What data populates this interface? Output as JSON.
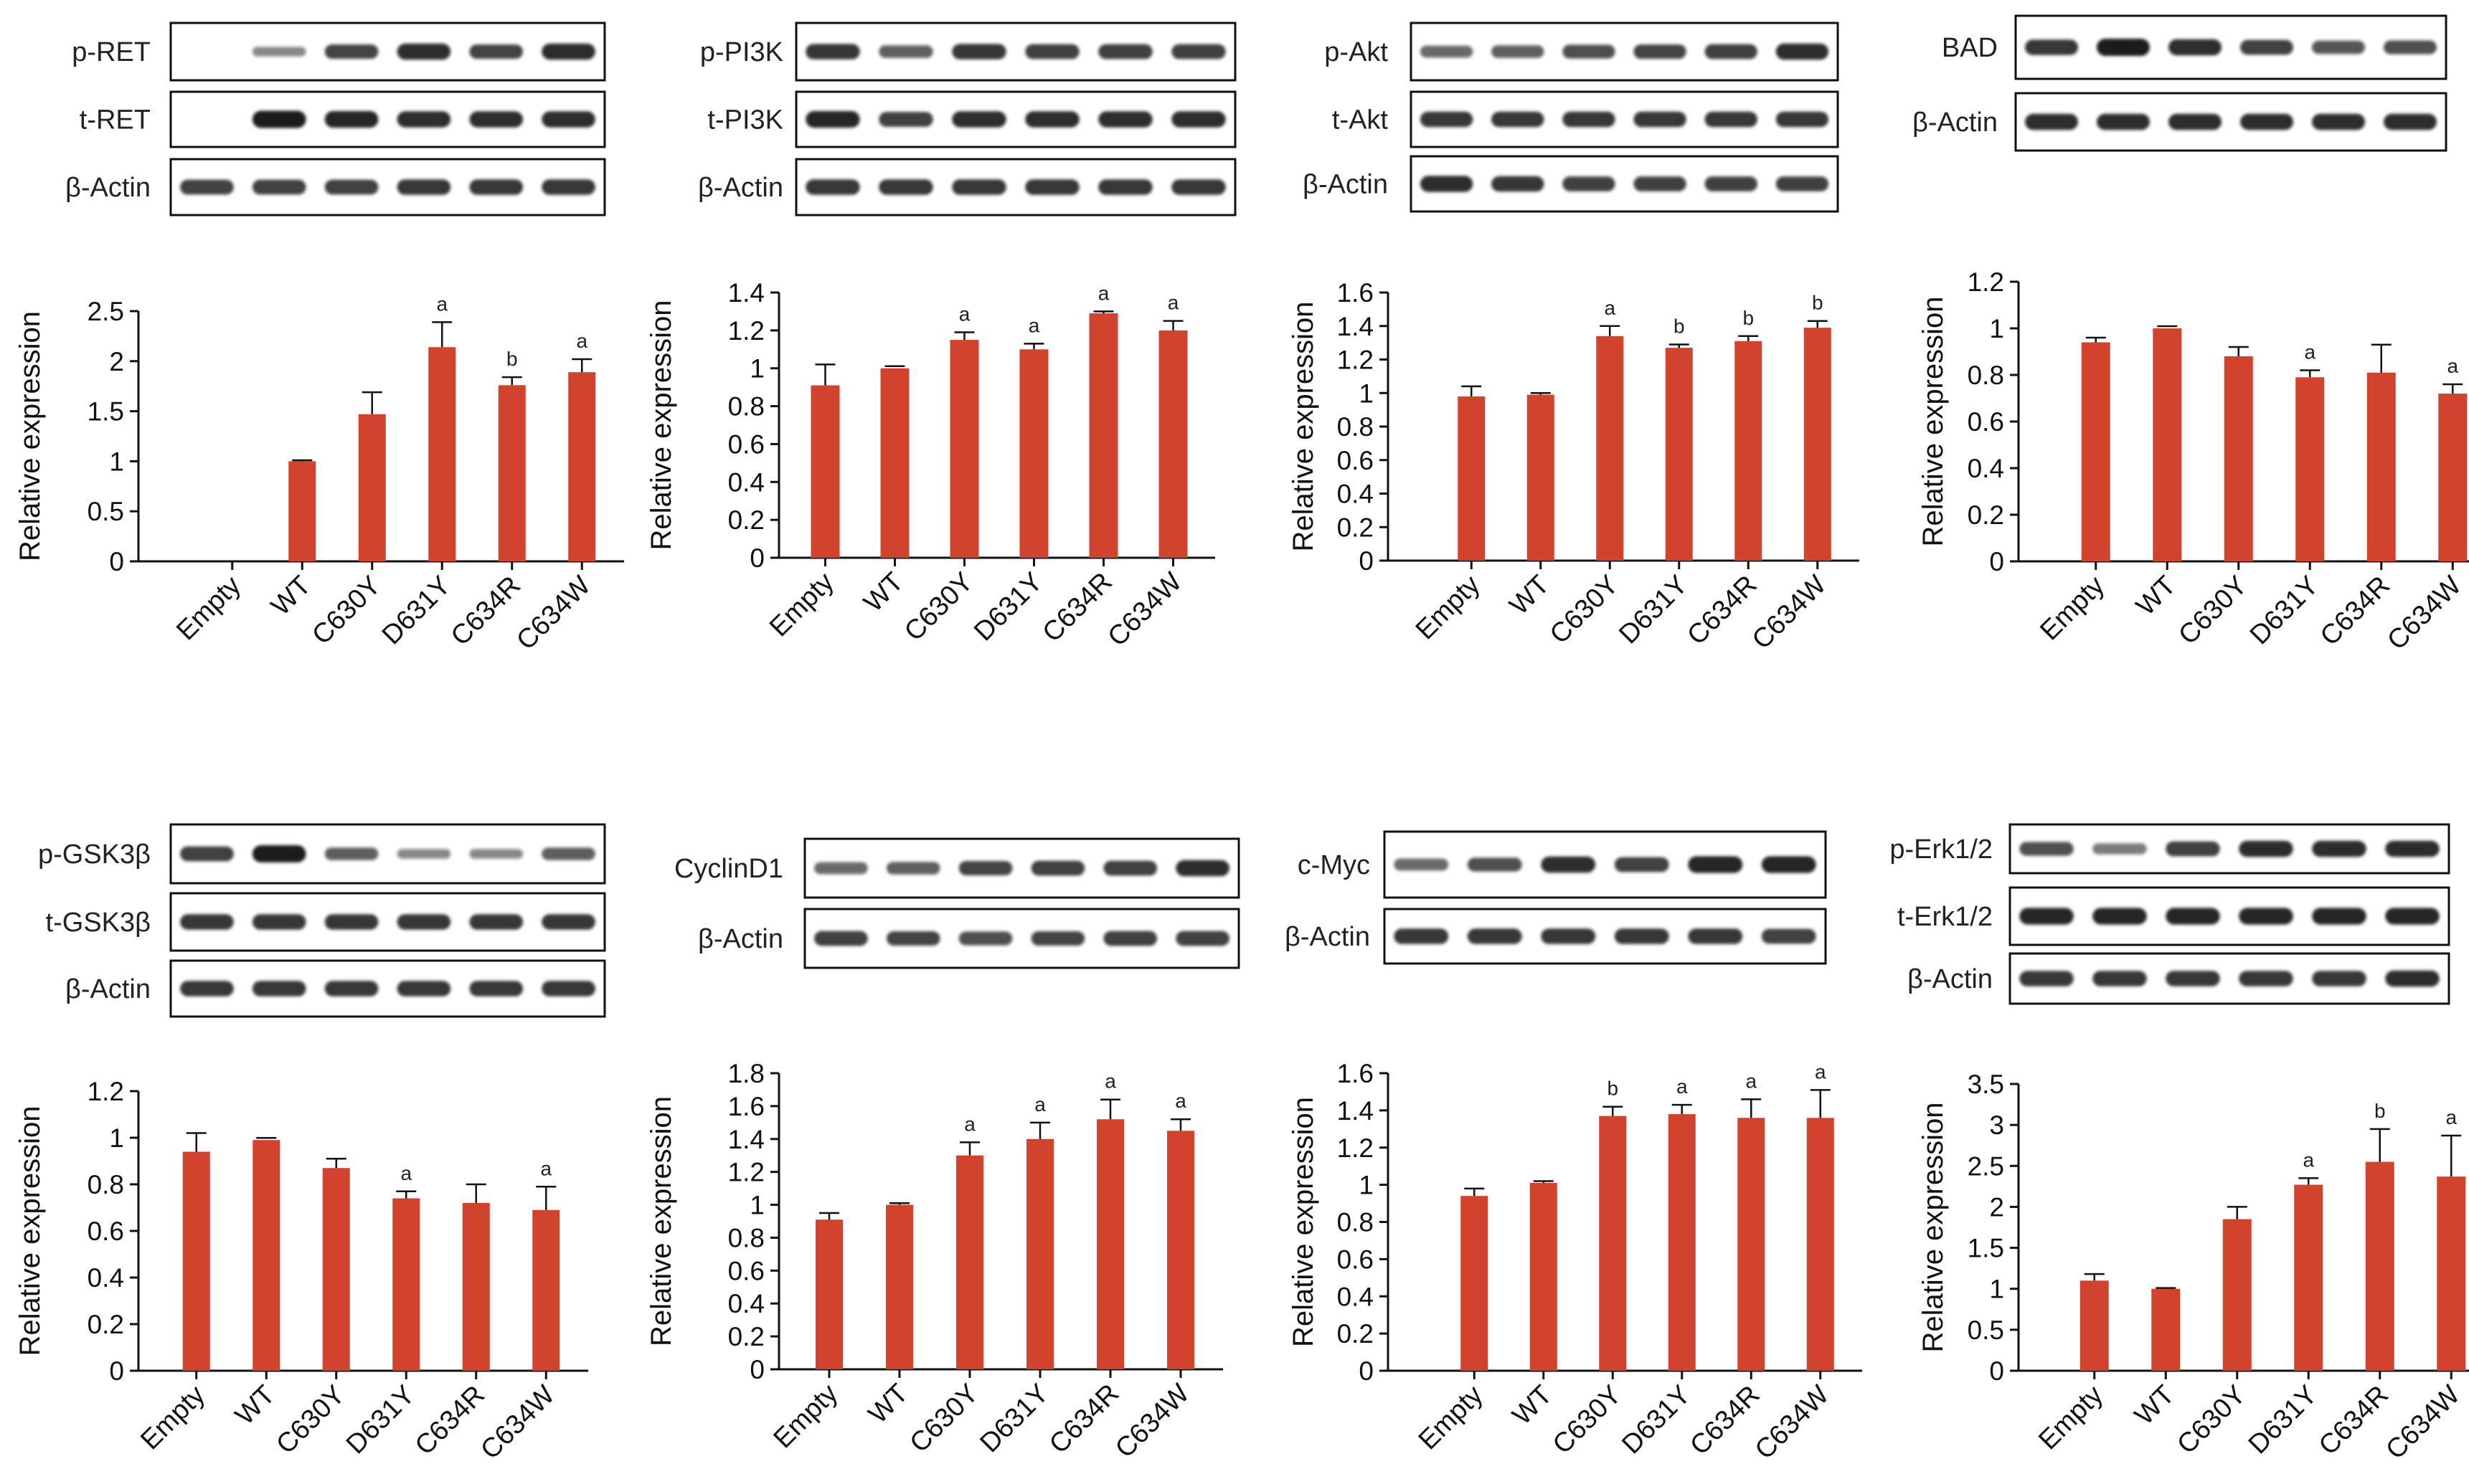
{
  "colors": {
    "bar": "#d1432c",
    "axis": "#111111",
    "band": "#1c1c1c"
  },
  "chart_data": [
    {
      "type": "bar",
      "xlabel": "",
      "ylabel": "Relative expression",
      "categories": [
        "Empty",
        "WT",
        "C630Y",
        "D631Y",
        "C634R",
        "C634W"
      ],
      "values": [
        0,
        1.0,
        1.47,
        2.14,
        1.76,
        1.89
      ],
      "errors": [
        0,
        0.01,
        0.22,
        0.25,
        0.08,
        0.13
      ],
      "sig": [
        "",
        "",
        "",
        "a",
        "b",
        "a"
      ],
      "ylim": [
        0,
        2.5
      ],
      "yticks": [
        0,
        0.5,
        1,
        1.5,
        2,
        2.5
      ],
      "ytick_labels": [
        "0",
        "0.5",
        "1",
        "1.5",
        "2",
        "2.5"
      ],
      "blots": [
        {
          "label": "p-RET",
          "bands": [
            0,
            0.35,
            0.75,
            0.9,
            0.75,
            0.9
          ]
        },
        {
          "label": "t-RET",
          "bands": [
            0,
            1,
            0.95,
            0.9,
            0.9,
            0.9
          ]
        },
        {
          "label": "β-Actin",
          "bands": [
            0.8,
            0.8,
            0.8,
            0.85,
            0.85,
            0.85
          ]
        }
      ]
    },
    {
      "type": "bar",
      "xlabel": "",
      "ylabel": "Relative expression",
      "categories": [
        "Empty",
        "WT",
        "C630Y",
        "D631Y",
        "C634R",
        "C634W"
      ],
      "values": [
        0.91,
        1.0,
        1.15,
        1.1,
        1.29,
        1.2
      ],
      "errors": [
        0.11,
        0.0,
        0.04,
        0.03,
        0.01,
        0.05
      ],
      "sig": [
        "",
        "",
        "a",
        "a",
        "a",
        "a"
      ],
      "ylim": [
        0,
        1.4
      ],
      "yticks": [
        0,
        0.2,
        0.4,
        0.6,
        0.8,
        1,
        1.2,
        1.4
      ],
      "ytick_labels": [
        "0",
        "0.2",
        "0.4",
        "0.6",
        "0.8",
        "1",
        "1.2",
        "1.4"
      ],
      "blots": [
        {
          "label": "p-PI3K",
          "bands": [
            0.85,
            0.6,
            0.85,
            0.8,
            0.8,
            0.8
          ]
        },
        {
          "label": "t-PI3K",
          "bands": [
            0.95,
            0.8,
            0.9,
            0.9,
            0.9,
            0.9
          ]
        },
        {
          "label": "β-Actin",
          "bands": [
            0.85,
            0.85,
            0.85,
            0.85,
            0.85,
            0.85
          ]
        }
      ]
    },
    {
      "type": "bar",
      "xlabel": "",
      "ylabel": "Relative expression",
      "categories": [
        "Empty",
        "WT",
        "C630Y",
        "D631Y",
        "C634R",
        "C634W"
      ],
      "values": [
        0.98,
        0.99,
        1.34,
        1.27,
        1.31,
        1.39
      ],
      "errors": [
        0.06,
        0.01,
        0.06,
        0.02,
        0.03,
        0.04
      ],
      "sig": [
        "",
        "",
        "a",
        "b",
        "b",
        "b"
      ],
      "ylim": [
        0,
        1.6
      ],
      "yticks": [
        0,
        0.2,
        0.4,
        0.6,
        0.8,
        1,
        1.2,
        1.4,
        1.6
      ],
      "ytick_labels": [
        "0",
        "0.2",
        "0.4",
        "0.6",
        "0.8",
        "1",
        "1.2",
        "1.4",
        "1.6"
      ],
      "blots": [
        {
          "label": "p-Akt",
          "bands": [
            0.55,
            0.6,
            0.7,
            0.75,
            0.8,
            0.9
          ]
        },
        {
          "label": "t-Akt",
          "bands": [
            0.85,
            0.85,
            0.85,
            0.85,
            0.85,
            0.85
          ]
        },
        {
          "label": "β-Actin",
          "bands": [
            0.9,
            0.85,
            0.8,
            0.8,
            0.8,
            0.8
          ]
        }
      ]
    },
    {
      "type": "bar",
      "xlabel": "",
      "ylabel": "Relative expression",
      "categories": [
        "Empty",
        "WT",
        "C630Y",
        "D631Y",
        "C634R",
        "C634W"
      ],
      "values": [
        0.94,
        1.0,
        0.88,
        0.79,
        0.81,
        0.72
      ],
      "errors": [
        0.02,
        0.0,
        0.04,
        0.03,
        0.12,
        0.04
      ],
      "sig": [
        "",
        "",
        "",
        "a",
        "",
        "a"
      ],
      "ylim": [
        0,
        1.2
      ],
      "yticks": [
        0,
        0.2,
        0.4,
        0.6,
        0.8,
        1,
        1.2
      ],
      "ytick_labels": [
        "0",
        "0.2",
        "0.4",
        "0.6",
        "0.8",
        "1",
        "1.2"
      ],
      "blots": [
        {
          "label": "BAD",
          "bands": [
            0.85,
            1,
            0.9,
            0.8,
            0.65,
            0.7
          ]
        },
        {
          "label": "β-Actin",
          "bands": [
            0.9,
            0.9,
            0.9,
            0.9,
            0.9,
            0.9
          ]
        }
      ]
    },
    {
      "type": "bar",
      "xlabel": "",
      "ylabel": "Relative expression",
      "categories": [
        "Empty",
        "WT",
        "C630Y",
        "D631Y",
        "C634R",
        "C634W"
      ],
      "values": [
        0.94,
        0.99,
        0.87,
        0.74,
        0.72,
        0.69
      ],
      "errors": [
        0.08,
        0.0,
        0.04,
        0.03,
        0.08,
        0.1
      ],
      "sig": [
        "",
        "",
        "",
        "a",
        "",
        "a"
      ],
      "ylim": [
        0,
        1.2
      ],
      "yticks": [
        0,
        0.2,
        0.4,
        0.6,
        0.8,
        1,
        1.2
      ],
      "ytick_labels": [
        "0",
        "0.2",
        "0.4",
        "0.6",
        "0.8",
        "1",
        "1.2"
      ],
      "blots": [
        {
          "label": "p-GSK3β",
          "bands": [
            0.8,
            1,
            0.6,
            0.35,
            0.35,
            0.6
          ]
        },
        {
          "label": "t-GSK3β",
          "bands": [
            0.85,
            0.85,
            0.85,
            0.85,
            0.85,
            0.85
          ]
        },
        {
          "label": "β-Actin",
          "bands": [
            0.85,
            0.85,
            0.85,
            0.85,
            0.85,
            0.85
          ]
        }
      ]
    },
    {
      "type": "bar",
      "xlabel": "",
      "ylabel": "Relative expression",
      "categories": [
        "Empty",
        "WT",
        "C630Y",
        "D631Y",
        "C634R",
        "C634W"
      ],
      "values": [
        0.91,
        1.0,
        1.3,
        1.4,
        1.52,
        1.45
      ],
      "errors": [
        0.04,
        0.01,
        0.08,
        0.1,
        0.12,
        0.07
      ],
      "sig": [
        "",
        "",
        "a",
        "a",
        "a",
        "a"
      ],
      "ylim": [
        0,
        1.8
      ],
      "yticks": [
        0,
        0.2,
        0.4,
        0.6,
        0.8,
        1,
        1.2,
        1.4,
        1.6,
        1.8
      ],
      "ytick_labels": [
        "0",
        "0.2",
        "0.4",
        "0.6",
        "0.8",
        "1",
        "1.2",
        "1.4",
        "1.6",
        "1.8"
      ],
      "blots": [
        {
          "label": "CyclinD1",
          "bands": [
            0.55,
            0.6,
            0.75,
            0.8,
            0.8,
            0.9
          ]
        },
        {
          "label": "β-Actin",
          "bands": [
            0.8,
            0.75,
            0.7,
            0.75,
            0.8,
            0.8
          ]
        }
      ]
    },
    {
      "type": "bar",
      "xlabel": "",
      "ylabel": "Relative expression",
      "categories": [
        "Empty",
        "WT",
        "C630Y",
        "D631Y",
        "C634R",
        "C634W"
      ],
      "values": [
        0.94,
        1.01,
        1.37,
        1.38,
        1.36,
        1.36
      ],
      "errors": [
        0.04,
        0.01,
        0.05,
        0.05,
        0.1,
        0.15
      ],
      "sig": [
        "",
        "",
        "b",
        "a",
        "a",
        "a"
      ],
      "ylim": [
        0,
        1.6
      ],
      "yticks": [
        0,
        0.2,
        0.4,
        0.6,
        0.8,
        1,
        1.2,
        1.4,
        1.6
      ],
      "ytick_labels": [
        "0",
        "0.2",
        "0.4",
        "0.6",
        "0.8",
        "1",
        "1.2",
        "1.4",
        "1.6"
      ],
      "blots": [
        {
          "label": "c-Myc",
          "bands": [
            0.55,
            0.7,
            0.9,
            0.8,
            0.95,
            0.95
          ]
        },
        {
          "label": "β-Actin",
          "bands": [
            0.85,
            0.85,
            0.85,
            0.85,
            0.85,
            0.8
          ]
        }
      ]
    },
    {
      "type": "bar",
      "xlabel": "",
      "ylabel": "Relative expression",
      "categories": [
        "Empty",
        "WT",
        "C630Y",
        "D631Y",
        "C634R",
        "C634W"
      ],
      "values": [
        1.1,
        1.0,
        1.85,
        2.27,
        2.55,
        2.37
      ],
      "errors": [
        0.08,
        0.01,
        0.15,
        0.08,
        0.4,
        0.5
      ],
      "sig": [
        "",
        "",
        "",
        "a",
        "b",
        "a"
      ],
      "ylim": [
        0,
        3.5
      ],
      "yticks": [
        0,
        0.5,
        1,
        1.5,
        2,
        2.5,
        3,
        3.5
      ],
      "ytick_labels": [
        "0",
        "0.5",
        "1",
        "1.5",
        "2",
        "2.5",
        "3",
        "3.5"
      ],
      "blots": [
        {
          "label": "p-Erk1/2",
          "bands": [
            0.7,
            0.45,
            0.8,
            0.9,
            0.9,
            0.9
          ]
        },
        {
          "label": "t-Erk1/2",
          "bands": [
            0.95,
            0.95,
            0.95,
            0.95,
            0.95,
            0.95
          ]
        },
        {
          "label": "β-Actin",
          "bands": [
            0.85,
            0.85,
            0.85,
            0.85,
            0.85,
            0.9
          ]
        }
      ]
    }
  ]
}
